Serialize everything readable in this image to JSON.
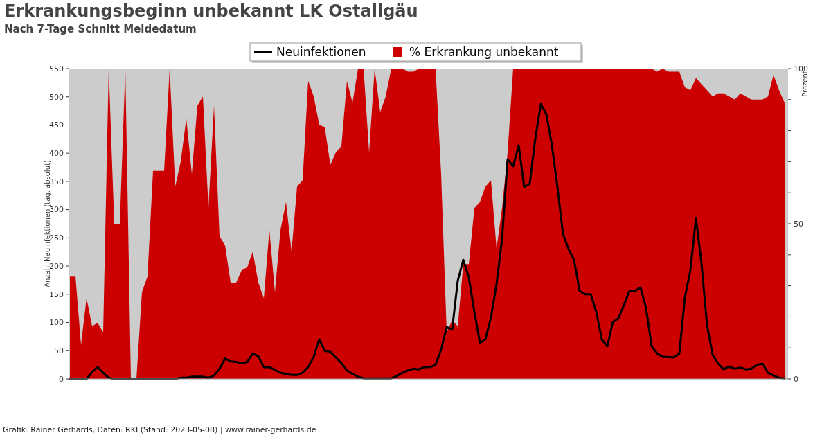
{
  "chart_data": {
    "type": "line",
    "title": "Erkrankungsbeginn unbekannt LK Ostallgäu",
    "subtitle": "Nach 7-Tage Schnitt Meldedatum",
    "ylabel": "Anzahl Neuinfektionen (tag. absolut)",
    "y2label": "Prozent",
    "annotations": [
      "Grafik: Rainer Gerhards, Daten: RKI (Stand: 2023-05-08) | www.rainer-gerhards.de"
    ],
    "categories": [
      null,
      null,
      null,
      null,
      null,
      null,
      null,
      null,
      null,
      null,
      null,
      null,
      null,
      null,
      null,
      null,
      null,
      null,
      null,
      null,
      null,
      null,
      null,
      null,
      null,
      null,
      null,
      null,
      null,
      null,
      null,
      null,
      null,
      null,
      null,
      null,
      null,
      null,
      null,
      null,
      null,
      null,
      null,
      null,
      null,
      null,
      null,
      null,
      null,
      null,
      null,
      null,
      null,
      null,
      null,
      null,
      null,
      null,
      null,
      null,
      null,
      null,
      null,
      null,
      null,
      null,
      null,
      null,
      null,
      null,
      null,
      null,
      null,
      null,
      null,
      null,
      null,
      null,
      null,
      null,
      null,
      null,
      null,
      null,
      null,
      null,
      null,
      null,
      null,
      null,
      null,
      null,
      null,
      null,
      null,
      null,
      null,
      null,
      null,
      null,
      null,
      null,
      null,
      null,
      null,
      null,
      null,
      null,
      null,
      null,
      null,
      null,
      null,
      null,
      null,
      null,
      null,
      null,
      null,
      null,
      null,
      null,
      null,
      null,
      null,
      null,
      null,
      null,
      null,
      null
    ],
    "series": [
      {
        "name": "% Erkrankung unbekannt",
        "type": "area",
        "axis": "y2",
        "color": "#cc0000",
        "values": [
          33,
          33,
          11,
          26,
          17,
          18,
          15,
          100,
          50,
          50,
          100,
          0,
          0,
          28,
          33,
          67,
          67,
          67,
          100,
          62,
          70,
          84,
          66,
          88,
          91,
          55,
          88,
          46,
          43,
          31,
          31,
          35,
          36,
          41,
          31,
          26,
          48,
          28,
          48,
          57,
          41,
          62,
          64,
          96,
          91,
          82,
          81,
          69,
          73,
          75,
          96,
          89,
          100,
          100,
          73,
          100,
          86,
          91,
          100,
          100,
          100,
          99,
          99,
          100,
          100,
          100,
          100,
          66,
          15,
          19,
          17,
          37,
          37,
          55,
          57,
          62,
          64,
          42,
          55,
          73,
          100,
          100,
          100,
          100,
          100,
          100,
          100,
          100,
          100,
          100,
          100,
          100,
          100,
          100,
          100,
          100,
          100,
          100,
          100,
          100,
          100,
          100,
          100,
          100,
          100,
          100,
          99,
          100,
          99,
          99,
          99,
          94,
          93,
          97,
          95,
          93,
          91,
          92,
          92,
          91,
          90,
          92,
          91,
          90,
          90,
          90,
          91,
          98,
          93,
          89
        ]
      },
      {
        "name": "Neuinfektionen",
        "axis": "y",
        "color": "#000000",
        "values": [
          0,
          0,
          0,
          0,
          12,
          21,
          11,
          2,
          0,
          0,
          0,
          0,
          0,
          0,
          0,
          0,
          0,
          0,
          0,
          0,
          2,
          2,
          4,
          4,
          4,
          2,
          6,
          18,
          36,
          31,
          30,
          28,
          30,
          45,
          40,
          21,
          21,
          16,
          11,
          9,
          7,
          7,
          11,
          21,
          39,
          70,
          50,
          48,
          38,
          28,
          15,
          9,
          4,
          1,
          1,
          1,
          1,
          1,
          1,
          5,
          11,
          15,
          18,
          17,
          21,
          21,
          25,
          52,
          92,
          88,
          174,
          211,
          180,
          119,
          64,
          70,
          109,
          168,
          248,
          389,
          377,
          414,
          340,
          346,
          426,
          487,
          469,
          414,
          340,
          257,
          230,
          211,
          156,
          150,
          150,
          119,
          70,
          58,
          101,
          107,
          131,
          156,
          156,
          162,
          125,
          58,
          45,
          39,
          39,
          38,
          45,
          144,
          193,
          285,
          205,
          95,
          43,
          27,
          17,
          22,
          18,
          20,
          17,
          18,
          25,
          27,
          11,
          6,
          2,
          1
        ]
      }
    ],
    "ylim": [
      0,
      550
    ],
    "yticks": [
      0,
      50,
      100,
      150,
      200,
      250,
      300,
      350,
      400,
      450,
      500,
      550
    ],
    "y2lim": [
      0,
      100
    ],
    "y2ticks": [
      0,
      {
        "value": 10,
        "label": null
      },
      {
        "value": 20,
        "label": null
      },
      {
        "value": 30,
        "label": null
      },
      {
        "value": 40,
        "label": null
      },
      50,
      {
        "value": 60,
        "label": null
      },
      {
        "value": 70,
        "label": null
      },
      {
        "value": 80,
        "label": null
      },
      {
        "value": 90,
        "label": null
      },
      100
    ],
    "legend": "top",
    "grid": false,
    "line_style": "solid",
    "marker": "none"
  }
}
